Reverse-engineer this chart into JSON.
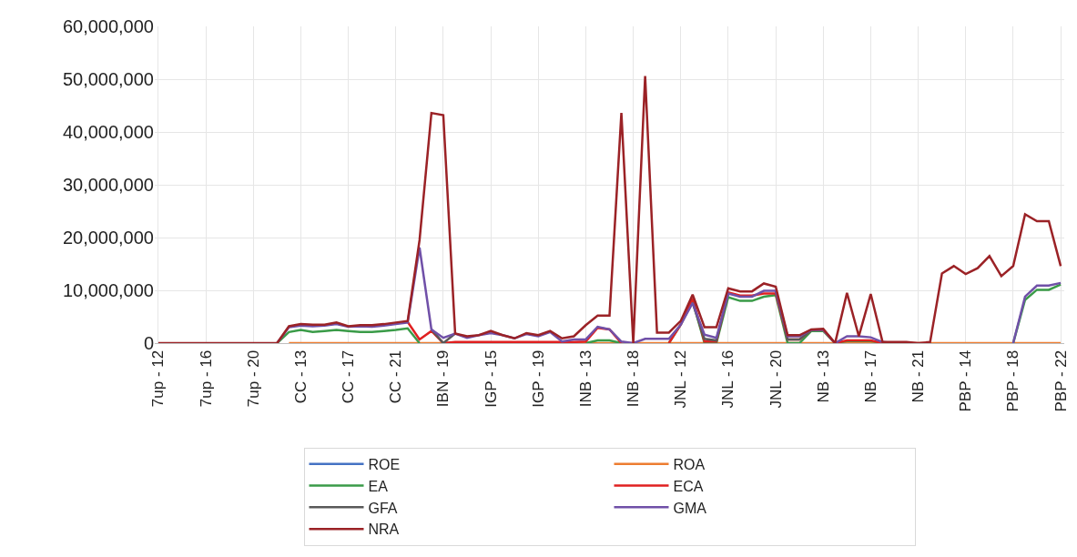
{
  "chart_data": {
    "type": "line",
    "categories": [
      "7up - 12",
      null,
      null,
      null,
      "7up - 16",
      null,
      null,
      null,
      "7up - 20",
      null,
      null,
      null,
      "CC - 13",
      null,
      null,
      null,
      "CC - 17",
      null,
      null,
      null,
      "CC - 21",
      null,
      null,
      null,
      "IBN - 19",
      null,
      null,
      null,
      "IGP - 15",
      null,
      null,
      null,
      "IGP - 19",
      null,
      null,
      null,
      "INB - 13",
      null,
      null,
      null,
      "INB - 18",
      null,
      null,
      null,
      "JNL - 12",
      null,
      null,
      null,
      "JNL - 16",
      null,
      null,
      null,
      "JNL - 20",
      null,
      null,
      null,
      "NB - 13",
      null,
      null,
      null,
      "NB - 17",
      null,
      null,
      null,
      "NB - 21",
      null,
      null,
      null,
      "PBP - 14",
      null,
      null,
      null,
      "PBP - 18",
      null,
      null,
      null,
      "PBP - 22"
    ],
    "series": [
      {
        "name": "ROE",
        "color": "#4472c4",
        "values": [
          null,
          null,
          null,
          null,
          null,
          null,
          null,
          null,
          null,
          null,
          null,
          null,
          null,
          null,
          null,
          null,
          null,
          null,
          null,
          null,
          null,
          null,
          null,
          null,
          null,
          null,
          null,
          null,
          null,
          null,
          null,
          null,
          null,
          null,
          null,
          null,
          null,
          null,
          null,
          null,
          null,
          null,
          null,
          null,
          null,
          null,
          null,
          null,
          null,
          null,
          null,
          null,
          null,
          null,
          null,
          null,
          null,
          null,
          null,
          null,
          null,
          null,
          null,
          null,
          null,
          null,
          null,
          null,
          null,
          null,
          null,
          null,
          null,
          null,
          null,
          null,
          null
        ]
      },
      {
        "name": "ROA",
        "color": "#ed7d31",
        "values": [
          null,
          null,
          null,
          null,
          null,
          null,
          null,
          null,
          null,
          null,
          null,
          0,
          0,
          0,
          0,
          0,
          0,
          0,
          0,
          0,
          0,
          0,
          0,
          0,
          0,
          0,
          0,
          0,
          0,
          0,
          0,
          0,
          0,
          0,
          0,
          0,
          0,
          0,
          0,
          0,
          0,
          0,
          0,
          0,
          0,
          0,
          0,
          0,
          0,
          0,
          0,
          0,
          0,
          0,
          0,
          0,
          0,
          0,
          0,
          0,
          0,
          0,
          0,
          0,
          0,
          0,
          0,
          0,
          0,
          0,
          0,
          0,
          0,
          0,
          0,
          0,
          0
        ]
      },
      {
        "name": "EA",
        "color": "#3a9b48",
        "values": [
          null,
          null,
          null,
          null,
          null,
          null,
          null,
          null,
          null,
          null,
          0,
          2100000,
          2500000,
          2100000,
          2300000,
          2500000,
          2300000,
          2100000,
          2100000,
          2300000,
          2500000,
          2800000,
          0,
          null,
          null,
          null,
          null,
          null,
          null,
          null,
          null,
          null,
          null,
          null,
          null,
          null,
          0,
          500000,
          500000,
          0,
          null,
          null,
          null,
          0,
          3500000,
          8000000,
          0,
          0,
          8700000,
          8000000,
          8000000,
          8800000,
          9100000,
          0,
          0,
          2300000,
          2300000,
          0,
          400000,
          400000,
          400000,
          0,
          null,
          null,
          null,
          null,
          null,
          null,
          null,
          null,
          null,
          null,
          0,
          8200000,
          10100000,
          10100000,
          11100000
        ]
      },
      {
        "name": "ECA",
        "color": "#e02020",
        "values": [
          null,
          null,
          null,
          null,
          null,
          null,
          null,
          null,
          null,
          null,
          null,
          null,
          null,
          null,
          null,
          null,
          null,
          null,
          null,
          null,
          null,
          4000000,
          700000,
          2300000,
          0,
          200000,
          200000,
          200000,
          200000,
          200000,
          200000,
          200000,
          200000,
          200000,
          200000,
          200000,
          300000,
          2900000,
          2600000,
          0,
          null,
          null,
          null,
          0,
          3500000,
          8500000,
          300000,
          300000,
          9600000,
          9000000,
          9000000,
          9400000,
          9400000,
          700000,
          700000,
          2500000,
          2500000,
          0,
          500000,
          500000,
          500000,
          0,
          null,
          null,
          null,
          null,
          null,
          null,
          null,
          null,
          null,
          null,
          null,
          null,
          null,
          null,
          null
        ]
      },
      {
        "name": "GFA",
        "color": "#595959",
        "values": [
          null,
          null,
          null,
          null,
          null,
          null,
          null,
          null,
          null,
          null,
          null,
          null,
          null,
          null,
          null,
          null,
          null,
          null,
          null,
          null,
          null,
          null,
          null,
          2600000,
          0,
          1800000,
          null,
          null,
          null,
          null,
          null,
          null,
          null,
          null,
          null,
          null,
          null,
          null,
          null,
          null,
          null,
          null,
          null,
          null,
          null,
          7600000,
          800000,
          500000,
          9400000,
          null,
          null,
          null,
          9900000,
          700000,
          700000,
          2500000,
          null,
          null,
          null,
          null,
          null,
          null,
          null,
          null,
          null,
          null,
          null,
          null,
          null,
          null,
          null,
          null,
          null,
          null,
          null,
          null,
          null
        ]
      },
      {
        "name": "GMA",
        "color": "#7050a8",
        "values": [
          null,
          null,
          null,
          null,
          null,
          null,
          null,
          null,
          null,
          null,
          0,
          3000000,
          3300000,
          3200000,
          3300000,
          3600000,
          3100000,
          3200000,
          3100000,
          3300000,
          3600000,
          3900000,
          18100000,
          2600000,
          1000000,
          1800000,
          1000000,
          1500000,
          1900000,
          1500000,
          900000,
          1700000,
          1300000,
          2100000,
          300000,
          700000,
          700000,
          3100000,
          2600000,
          300000,
          0,
          800000,
          800000,
          800000,
          3500000,
          7600000,
          1600000,
          1000000,
          9400000,
          8800000,
          8800000,
          9900000,
          9900000,
          1300000,
          1300000,
          2500000,
          2500000,
          0,
          1300000,
          1300000,
          1100000,
          200000,
          0,
          null,
          null,
          null,
          null,
          null,
          null,
          null,
          null,
          null,
          0,
          8800000,
          10900000,
          10900000,
          11400000
        ]
      },
      {
        "name": "NRA",
        "color": "#9b2226",
        "values": [
          0,
          0,
          0,
          0,
          0,
          0,
          0,
          0,
          0,
          0,
          0,
          3200000,
          3600000,
          3500000,
          3500000,
          3900000,
          3200000,
          3400000,
          3400000,
          3600000,
          3900000,
          4200000,
          19500000,
          43600000,
          43200000,
          1800000,
          1300000,
          1500000,
          2300000,
          1500000,
          900000,
          1900000,
          1500000,
          2300000,
          900000,
          1300000,
          3400000,
          5200000,
          5200000,
          43600000,
          0,
          50600000,
          2000000,
          2000000,
          4200000,
          9200000,
          3000000,
          3000000,
          10400000,
          9800000,
          9800000,
          11300000,
          10700000,
          1500000,
          1500000,
          2600000,
          2700000,
          0,
          9500000,
          1300000,
          9300000,
          200000,
          200000,
          200000,
          0,
          200000,
          13200000,
          14600000,
          13100000,
          14200000,
          16500000,
          12700000,
          14600000,
          24400000,
          23100000,
          23100000,
          14600000
        ]
      }
    ],
    "ylim": [
      0,
      60000000
    ],
    "yticks": [
      {
        "value": 0,
        "label": "0"
      },
      {
        "value": 10000000,
        "label": "10,000,000"
      },
      {
        "value": 20000000,
        "label": "20,000,000"
      },
      {
        "value": 30000000,
        "label": "30,000,000"
      },
      {
        "value": 40000000,
        "label": "40,000,000"
      },
      {
        "value": 50000000,
        "label": "50,000,000"
      },
      {
        "value": 60000000,
        "label": "60,000,000"
      }
    ],
    "grid": true,
    "legend": "bottom"
  }
}
